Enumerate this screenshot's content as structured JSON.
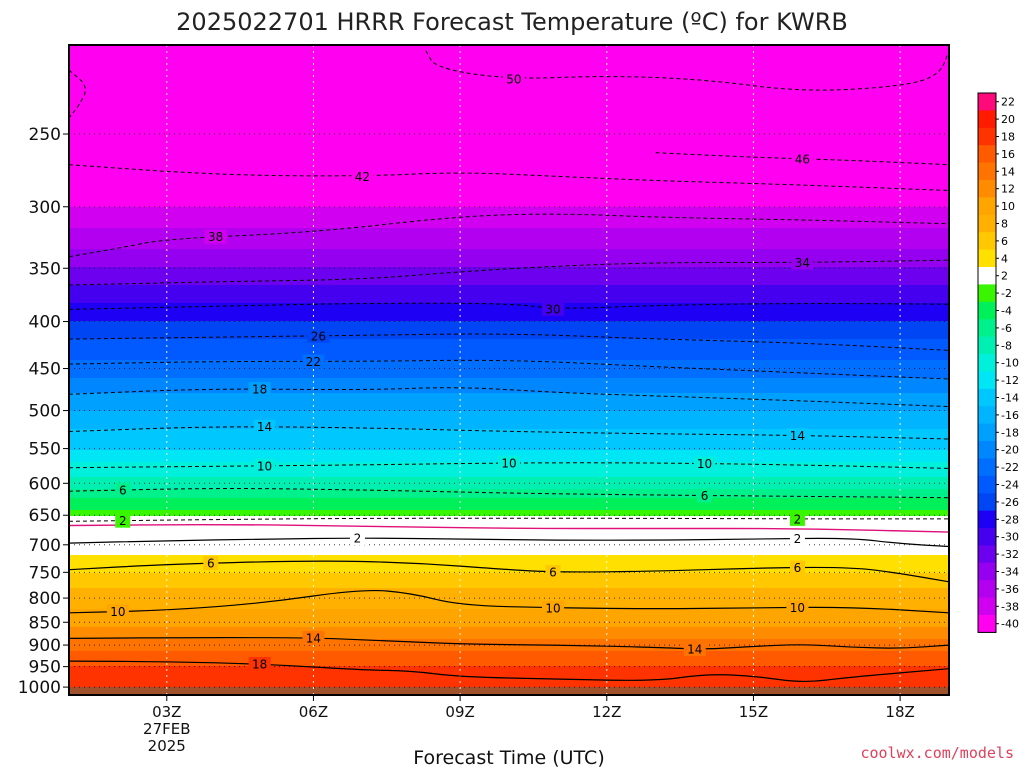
{
  "chart_data": {
    "type": "heatmap",
    "title": "2025022701 HRRR Forecast Temperature (ºC) for KWRB",
    "xlabel": "Forecast Time (UTC)",
    "ylabel": "",
    "credit": "coolwx.com/models",
    "x_ticks": [
      {
        "hour": 3,
        "lines": [
          "03Z",
          "27FEB",
          "2025"
        ]
      },
      {
        "hour": 6,
        "lines": [
          "06Z"
        ]
      },
      {
        "hour": 9,
        "lines": [
          "09Z"
        ]
      },
      {
        "hour": 12,
        "lines": [
          "12Z"
        ]
      },
      {
        "hour": 15,
        "lines": [
          "15Z"
        ]
      },
      {
        "hour": 18,
        "lines": [
          "18Z"
        ]
      }
    ],
    "xlim": [
      1,
      19
    ],
    "y_ticks": [
      250,
      300,
      350,
      400,
      450,
      500,
      550,
      600,
      650,
      700,
      750,
      800,
      850,
      900,
      950,
      1000
    ],
    "ylim": [
      1020,
      200
    ],
    "y_scale": "log",
    "surface_pressure": 1000,
    "grid": true,
    "colorbar": {
      "labels": [
        "22",
        "20",
        "18",
        "16",
        "14",
        "12",
        "10",
        "8",
        "6",
        "4",
        "2",
        "-2",
        "-4",
        "-6",
        "-8",
        "-10",
        "-12",
        "-14",
        "-16",
        "-18",
        "-20",
        "-22",
        "-24",
        "-26",
        "-28",
        "-30",
        "-32",
        "-34",
        "-36",
        "-38",
        "-40"
      ],
      "colors": [
        "#ff0a7a",
        "#ff1a00",
        "#ff3300",
        "#ff5a00",
        "#ff7300",
        "#ff8c00",
        "#ffa500",
        "#ffb000",
        "#ffc800",
        "#ffe000",
        "#ffffff",
        "#39f500",
        "#00f05a",
        "#00f08c",
        "#00f0b4",
        "#00f0dc",
        "#00e6f5",
        "#00c8ff",
        "#00b4ff",
        "#00a0ff",
        "#0087ff",
        "#006eff",
        "#005aff",
        "#0046f5",
        "#1e00f5",
        "#4600f0",
        "#6e00f0",
        "#9600f0",
        "#b400f0",
        "#d200f0",
        "#ff00f0"
      ]
    },
    "temperature_profile": [
      {
        "pressure": 1000,
        "temp": 19
      },
      {
        "pressure": 950,
        "temp": 17
      },
      {
        "pressure": 900,
        "temp": 14
      },
      {
        "pressure": 850,
        "temp": 10
      },
      {
        "pressure": 800,
        "temp": 8
      },
      {
        "pressure": 750,
        "temp": 5
      },
      {
        "pressure": 700,
        "temp": 2
      },
      {
        "pressure": 660,
        "temp": 0
      },
      {
        "pressure": 650,
        "temp": -2
      },
      {
        "pressure": 600,
        "temp": -8
      },
      {
        "pressure": 550,
        "temp": -13
      },
      {
        "pressure": 500,
        "temp": -17
      },
      {
        "pressure": 450,
        "temp": -22
      },
      {
        "pressure": 400,
        "temp": -27
      },
      {
        "pressure": 350,
        "temp": -33
      },
      {
        "pressure": 300,
        "temp": -39
      },
      {
        "pressure": 250,
        "temp": -46
      }
    ],
    "contours": [
      {
        "value": 18,
        "label": "18",
        "style": "solid",
        "points": [
          [
            1,
            937
          ],
          [
            3,
            938
          ],
          [
            5,
            944
          ],
          [
            7,
            958
          ],
          [
            8,
            960
          ],
          [
            9,
            975
          ],
          [
            11,
            980
          ],
          [
            13,
            985
          ],
          [
            14,
            968
          ],
          [
            15,
            972
          ],
          [
            16,
            990
          ],
          [
            17,
            975
          ],
          [
            19,
            955
          ]
        ],
        "label_at": [
          4.9
        ]
      },
      {
        "value": 14,
        "label": "14",
        "style": "solid",
        "points": [
          [
            1,
            885
          ],
          [
            4,
            883
          ],
          [
            6,
            884
          ],
          [
            7,
            888
          ],
          [
            9,
            898
          ],
          [
            11,
            900
          ],
          [
            13,
            905
          ],
          [
            14,
            910
          ],
          [
            15,
            903
          ],
          [
            16,
            898
          ],
          [
            17,
            905
          ],
          [
            18,
            908
          ],
          [
            19,
            900
          ]
        ],
        "label_at": [
          6.0,
          13.8
        ]
      },
      {
        "value": 10,
        "label": "10",
        "style": "solid",
        "points": [
          [
            1,
            830
          ],
          [
            3,
            825
          ],
          [
            5,
            810
          ],
          [
            7,
            782
          ],
          [
            8,
            790
          ],
          [
            9,
            815
          ],
          [
            11,
            820
          ],
          [
            13,
            822
          ],
          [
            15,
            820
          ],
          [
            17,
            818
          ],
          [
            19,
            830
          ]
        ],
        "label_at": [
          2.0,
          10.9,
          15.9
        ]
      },
      {
        "value": 6,
        "label": "6",
        "style": "solid",
        "points": [
          [
            1,
            745
          ],
          [
            3,
            735
          ],
          [
            6,
            728
          ],
          [
            8,
            732
          ],
          [
            10,
            745
          ],
          [
            11,
            750
          ],
          [
            13,
            748
          ],
          [
            15,
            742
          ],
          [
            17,
            740
          ],
          [
            18,
            752
          ],
          [
            19,
            768
          ]
        ],
        "label_at": [
          3.9,
          10.9,
          15.9
        ]
      },
      {
        "value": 2,
        "label": "2",
        "style": "solid",
        "points": [
          [
            1,
            697
          ],
          [
            3,
            693
          ],
          [
            5,
            690
          ],
          [
            7,
            688
          ],
          [
            9,
            690
          ],
          [
            11,
            692
          ],
          [
            13,
            692
          ],
          [
            15,
            690
          ],
          [
            17,
            688
          ],
          [
            18,
            698
          ],
          [
            19,
            703
          ]
        ],
        "label_at": [
          6.9,
          15.9
        ]
      },
      {
        "value": 0,
        "label": "",
        "style": "freezing",
        "points": [
          [
            1,
            667
          ],
          [
            4,
            665
          ],
          [
            7,
            668
          ],
          [
            10,
            672
          ],
          [
            13,
            672
          ],
          [
            16,
            672
          ],
          [
            19,
            678
          ]
        ],
        "label_at": []
      },
      {
        "value": -2,
        "label": "2",
        "style": "dashed",
        "points": [
          [
            1,
            660
          ],
          [
            4,
            657
          ],
          [
            7,
            655
          ],
          [
            10,
            655
          ],
          [
            13,
            655
          ],
          [
            16,
            656
          ],
          [
            19,
            656
          ]
        ],
        "label_at": [
          2.1,
          15.9
        ]
      },
      {
        "value": -6,
        "label": "6",
        "style": "dashed",
        "points": [
          [
            1,
            612
          ],
          [
            4,
            607
          ],
          [
            7,
            610
          ],
          [
            10,
            615
          ],
          [
            13,
            618
          ],
          [
            16,
            620
          ],
          [
            19,
            622
          ]
        ],
        "label_at": [
          2.1,
          14.0
        ]
      },
      {
        "value": -10,
        "label": "10",
        "style": "dashed",
        "points": [
          [
            1,
            577
          ],
          [
            4,
            575
          ],
          [
            7,
            573
          ],
          [
            10,
            570
          ],
          [
            13,
            570
          ],
          [
            16,
            573
          ],
          [
            19,
            578
          ]
        ],
        "label_at": [
          5.0,
          10.0,
          14.0
        ]
      },
      {
        "value": -14,
        "label": "14",
        "style": "dashed",
        "points": [
          [
            1,
            527
          ],
          [
            4,
            520
          ],
          [
            7,
            522
          ],
          [
            10,
            527
          ],
          [
            13,
            530
          ],
          [
            16,
            532
          ],
          [
            19,
            537
          ]
        ],
        "label_at": [
          5.0,
          15.9
        ]
      },
      {
        "value": -18,
        "label": "18",
        "style": "dashed",
        "points": [
          [
            1,
            480
          ],
          [
            4,
            473
          ],
          [
            7,
            475
          ],
          [
            9,
            471
          ],
          [
            11,
            478
          ],
          [
            13,
            482
          ],
          [
            16,
            488
          ],
          [
            19,
            495
          ]
        ],
        "label_at": [
          4.9
        ]
      },
      {
        "value": -22,
        "label": "22",
        "style": "dashed",
        "points": [
          [
            1,
            445
          ],
          [
            4,
            442
          ],
          [
            7,
            442
          ],
          [
            10,
            440
          ],
          [
            13,
            448
          ],
          [
            16,
            455
          ],
          [
            19,
            462
          ]
        ],
        "label_at": [
          6.0
        ]
      },
      {
        "value": -26,
        "label": "26",
        "style": "dashed",
        "points": [
          [
            1,
            418
          ],
          [
            4,
            416
          ],
          [
            7,
            414
          ],
          [
            10,
            412
          ],
          [
            13,
            418
          ],
          [
            16,
            422
          ],
          [
            19,
            430
          ]
        ],
        "label_at": [
          6.1
        ]
      },
      {
        "value": -30,
        "label": "30",
        "style": "dashed",
        "points": [
          [
            1,
            388
          ],
          [
            4,
            385
          ],
          [
            7,
            382
          ],
          [
            10,
            382
          ],
          [
            11,
            388
          ],
          [
            13,
            384
          ],
          [
            16,
            382
          ],
          [
            19,
            383
          ]
        ],
        "label_at": [
          10.9
        ]
      },
      {
        "value": -34,
        "label": "34",
        "style": "dashed",
        "points": [
          [
            1,
            365
          ],
          [
            4,
            362
          ],
          [
            7,
            360
          ],
          [
            9,
            353
          ],
          [
            11,
            348
          ],
          [
            13,
            345
          ],
          [
            16,
            345
          ],
          [
            19,
            343
          ]
        ],
        "label_at": [
          16.0
        ]
      },
      {
        "value": -38,
        "label": "38",
        "style": "dashed",
        "points": [
          [
            1,
            340
          ],
          [
            2,
            333
          ],
          [
            3,
            325
          ],
          [
            6,
            320
          ],
          [
            9,
            307
          ],
          [
            11,
            305
          ],
          [
            13,
            308
          ],
          [
            16,
            310
          ],
          [
            19,
            313
          ]
        ],
        "label_at": [
          4.0
        ]
      },
      {
        "value": -42,
        "label": "42",
        "style": "dashed",
        "points": [
          [
            1,
            270
          ],
          [
            4,
            277
          ],
          [
            7,
            278
          ],
          [
            9,
            275
          ],
          [
            11,
            278
          ],
          [
            13,
            281
          ],
          [
            16,
            284
          ],
          [
            19,
            288
          ]
        ],
        "label_at": [
          7.0
        ]
      },
      {
        "value": -46,
        "label": "46",
        "style": "dashed",
        "points": [
          [
            13,
            262
          ],
          [
            15,
            265
          ],
          [
            17,
            267
          ],
          [
            19,
            270
          ]
        ],
        "label_at": [
          16.0
        ]
      },
      {
        "value": -50,
        "label": "50",
        "style": "dashed",
        "points": [
          [
            8.3,
            203
          ],
          [
            8.5,
            212
          ],
          [
            10,
            218
          ],
          [
            12,
            216
          ],
          [
            14,
            218
          ],
          [
            16,
            225
          ],
          [
            18,
            222
          ],
          [
            18.8,
            216
          ],
          [
            19,
            203
          ]
        ],
        "label_at": [
          10.1
        ]
      },
      {
        "value": -50,
        "label": "",
        "style": "dashed",
        "points": [
          [
            1,
            213
          ],
          [
            1.4,
            222
          ],
          [
            1.2,
            233
          ],
          [
            1,
            240
          ]
        ],
        "label_at": []
      }
    ]
  }
}
